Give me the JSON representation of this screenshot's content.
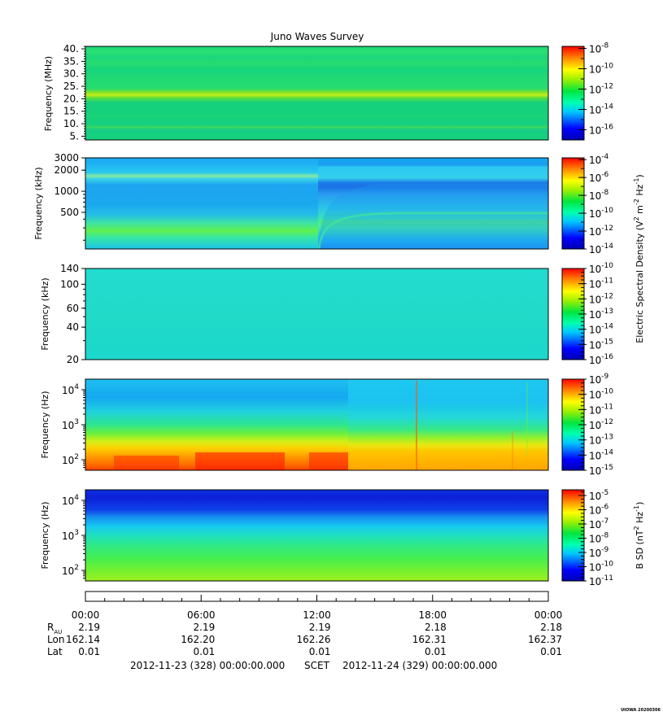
{
  "chart_data": {
    "type": "heatmap",
    "title": "Juno Waves Survey",
    "panels": [
      {
        "ylabel": "Frequency (MHz)",
        "yscale": "linear",
        "ylim": [
          3.5,
          41
        ],
        "yticks": [
          "5.",
          "10.",
          "15.",
          "20.",
          "25.",
          "30.",
          "35.",
          "40."
        ],
        "ytick_values": [
          5,
          10,
          15,
          20,
          25,
          30,
          35,
          40
        ],
        "colorbar": {
          "scale": "log",
          "range_exp": [
            -17,
            -7.8
          ],
          "major_exp": [
            -16,
            -14,
            -12,
            -10,
            -8
          ],
          "minor_step": 1
        }
      },
      {
        "ylabel": "Frequency (kHz)",
        "yscale": "log",
        "ylim": [
          150,
          3000
        ],
        "yticks": [
          "500",
          "1000",
          "2000",
          "3000"
        ],
        "ytick_values": [
          500,
          1000,
          2000,
          3000
        ],
        "colorbar": {
          "scale": "log",
          "range_exp": [
            -14,
            -3.8
          ],
          "major_exp": [
            -14,
            -12,
            -10,
            -8,
            -6,
            -4
          ],
          "minor_step": 1
        }
      },
      {
        "ylabel": "Frequency (kHz)",
        "yscale": "log",
        "ylim": [
          20,
          140
        ],
        "yticks": [
          "20",
          "40",
          "60",
          "100",
          "140"
        ],
        "ytick_values": [
          20,
          40,
          60,
          100,
          140
        ],
        "colorbar": {
          "scale": "log",
          "range_exp": [
            -16,
            -10
          ],
          "major_exp": [
            -16,
            -15,
            -14,
            -13,
            -12,
            -11,
            -10
          ],
          "minor_step": 0.25
        }
      },
      {
        "ylabel": "Frequency (Hz)",
        "yscale": "log",
        "ylim": [
          50,
          20000
        ],
        "yticks": [
          "2",
          "3",
          "4"
        ],
        "ytick_values": [
          100,
          1000,
          10000
        ],
        "colorbar": {
          "scale": "log",
          "range_exp": [
            -15,
            -9
          ],
          "major_exp": [
            -15,
            -14,
            -13,
            -12,
            -11,
            -10,
            -9
          ],
          "minor_step": 0.25
        }
      },
      {
        "ylabel": "Frequency (Hz)",
        "yscale": "log",
        "ylim": [
          50,
          20000
        ],
        "yticks": [
          "2",
          "3",
          "4"
        ],
        "ytick_values": [
          100,
          1000,
          10000
        ],
        "colorbar": {
          "scale": "log",
          "range_exp": [
            -11,
            -4.6
          ],
          "major_exp": [
            -11,
            -10,
            -9,
            -8,
            -7,
            -6,
            -5
          ],
          "minor_step": 0.25
        }
      }
    ],
    "colorbar_labels": {
      "electric": "Electric Spectral Density (V",
      "magnetic": "B SD (nT"
    },
    "x": {
      "ticks": [
        "00:00",
        "06:00",
        "12:00",
        "18:00",
        "00:00"
      ],
      "rows": [
        {
          "label": "R",
          "sub": "AU",
          "values": [
            "2.19",
            "2.19",
            "2.19",
            "2.18",
            "2.18"
          ]
        },
        {
          "label": "Lon",
          "sub": "",
          "values": [
            "162.14",
            "162.20",
            "162.26",
            "162.31",
            "162.37"
          ]
        },
        {
          "label": "Lat",
          "sub": "",
          "values": [
            "0.01",
            "0.01",
            "0.01",
            "0.01",
            "0.01"
          ]
        }
      ]
    },
    "date_line": {
      "start": "2012-11-23 (328) 00:00:00.000",
      "frame": "SCET",
      "end": "2012-11-24 (329) 00:00:00.000"
    },
    "credit": "UIOWA 20200306"
  }
}
